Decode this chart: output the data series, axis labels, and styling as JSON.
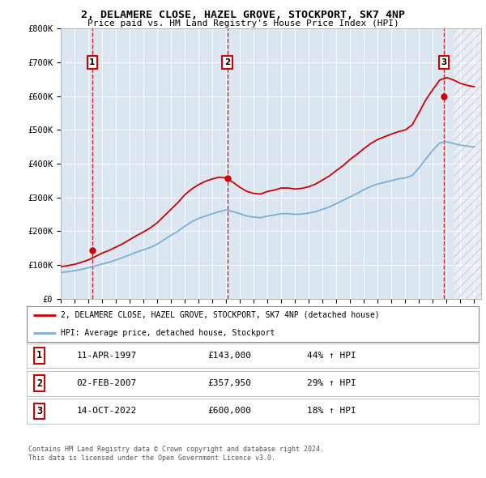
{
  "title": "2, DELAMERE CLOSE, HAZEL GROVE, STOCKPORT, SK7 4NP",
  "subtitle": "Price paid vs. HM Land Registry's House Price Index (HPI)",
  "legend_line1": "2, DELAMERE CLOSE, HAZEL GROVE, STOCKPORT, SK7 4NP (detached house)",
  "legend_line2": "HPI: Average price, detached house, Stockport",
  "footer1": "Contains HM Land Registry data © Crown copyright and database right 2024.",
  "footer2": "This data is licensed under the Open Government Licence v3.0.",
  "sale_labels": [
    {
      "num": "1",
      "date": "11-APR-1997",
      "price": "£143,000",
      "hpi": "44% ↑ HPI"
    },
    {
      "num": "2",
      "date": "02-FEB-2007",
      "price": "£357,950",
      "hpi": "29% ↑ HPI"
    },
    {
      "num": "3",
      "date": "14-OCT-2022",
      "price": "£600,000",
      "hpi": "18% ↑ HPI"
    }
  ],
  "sale_points": [
    {
      "year": 1997.28,
      "price": 143000
    },
    {
      "year": 2007.09,
      "price": 357950
    },
    {
      "year": 2022.79,
      "price": 600000
    }
  ],
  "red_vlines": [
    1997.28,
    2007.09,
    2022.79
  ],
  "ylim": [
    0,
    800000
  ],
  "xlim": [
    1995,
    2025.5
  ],
  "yticks": [
    0,
    100000,
    200000,
    300000,
    400000,
    500000,
    600000,
    700000,
    800000
  ],
  "ytick_labels": [
    "£0",
    "£100K",
    "£200K",
    "£300K",
    "£400K",
    "£500K",
    "£600K",
    "£700K",
    "£800K"
  ],
  "xticks": [
    1995,
    1996,
    1997,
    1998,
    1999,
    2000,
    2001,
    2002,
    2003,
    2004,
    2005,
    2006,
    2007,
    2008,
    2009,
    2010,
    2011,
    2012,
    2013,
    2014,
    2015,
    2016,
    2017,
    2018,
    2019,
    2020,
    2021,
    2022,
    2023,
    2024,
    2025
  ],
  "bg_color": "#dce6f1",
  "red_line_color": "#cc0000",
  "blue_line_color": "#7bafd4",
  "vline_color": "#cc0000",
  "marker_color": "#cc0000",
  "number_box_color": "#cc0000",
  "hpi_years": [
    1995,
    1995.5,
    1996,
    1996.5,
    1997,
    1997.5,
    1998,
    1998.5,
    1999,
    1999.5,
    2000,
    2000.5,
    2001,
    2001.5,
    2002,
    2002.5,
    2003,
    2003.5,
    2004,
    2004.5,
    2005,
    2005.5,
    2006,
    2006.5,
    2007,
    2007.5,
    2008,
    2008.5,
    2009,
    2009.5,
    2010,
    2010.5,
    2011,
    2011.5,
    2012,
    2012.5,
    2013,
    2013.5,
    2014,
    2014.5,
    2015,
    2015.5,
    2016,
    2016.5,
    2017,
    2017.5,
    2018,
    2018.5,
    2019,
    2019.5,
    2020,
    2020.5,
    2021,
    2021.5,
    2022,
    2022.5,
    2023,
    2023.5,
    2024,
    2024.5,
    2025
  ],
  "hpi_values": [
    78000,
    80000,
    83000,
    87000,
    92000,
    97000,
    103000,
    108000,
    115000,
    122000,
    130000,
    138000,
    145000,
    152000,
    162000,
    175000,
    188000,
    200000,
    215000,
    228000,
    238000,
    245000,
    252000,
    258000,
    263000,
    258000,
    252000,
    245000,
    242000,
    240000,
    245000,
    248000,
    252000,
    252000,
    250000,
    251000,
    254000,
    258000,
    265000,
    272000,
    282000,
    292000,
    302000,
    312000,
    323000,
    333000,
    340000,
    345000,
    350000,
    355000,
    358000,
    365000,
    388000,
    415000,
    440000,
    462000,
    465000,
    460000,
    455000,
    452000,
    450000
  ],
  "red_years": [
    1995,
    1995.5,
    1996,
    1996.5,
    1997,
    1997.5,
    1998,
    1998.5,
    1999,
    1999.5,
    2000,
    2000.5,
    2001,
    2001.5,
    2002,
    2002.5,
    2003,
    2003.5,
    2004,
    2004.5,
    2005,
    2005.5,
    2006,
    2006.5,
    2007,
    2007.5,
    2008,
    2008.5,
    2009,
    2009.5,
    2010,
    2010.5,
    2011,
    2011.5,
    2012,
    2012.5,
    2013,
    2013.5,
    2014,
    2014.5,
    2015,
    2015.5,
    2016,
    2016.5,
    2017,
    2017.5,
    2018,
    2018.5,
    2019,
    2019.5,
    2020,
    2020.5,
    2021,
    2021.5,
    2022,
    2022.5,
    2023,
    2023.5,
    2024,
    2024.5,
    2025
  ],
  "red_values": [
    95000,
    98000,
    102000,
    108000,
    115000,
    125000,
    135000,
    143000,
    153000,
    163000,
    175000,
    187000,
    198000,
    210000,
    225000,
    245000,
    265000,
    285000,
    308000,
    325000,
    338000,
    348000,
    355000,
    360000,
    358000,
    345000,
    330000,
    318000,
    312000,
    310000,
    318000,
    322000,
    328000,
    328000,
    325000,
    327000,
    332000,
    340000,
    352000,
    364000,
    380000,
    395000,
    413000,
    428000,
    445000,
    460000,
    472000,
    480000,
    488000,
    495000,
    500000,
    515000,
    552000,
    590000,
    620000,
    648000,
    655000,
    648000,
    638000,
    632000,
    628000
  ]
}
